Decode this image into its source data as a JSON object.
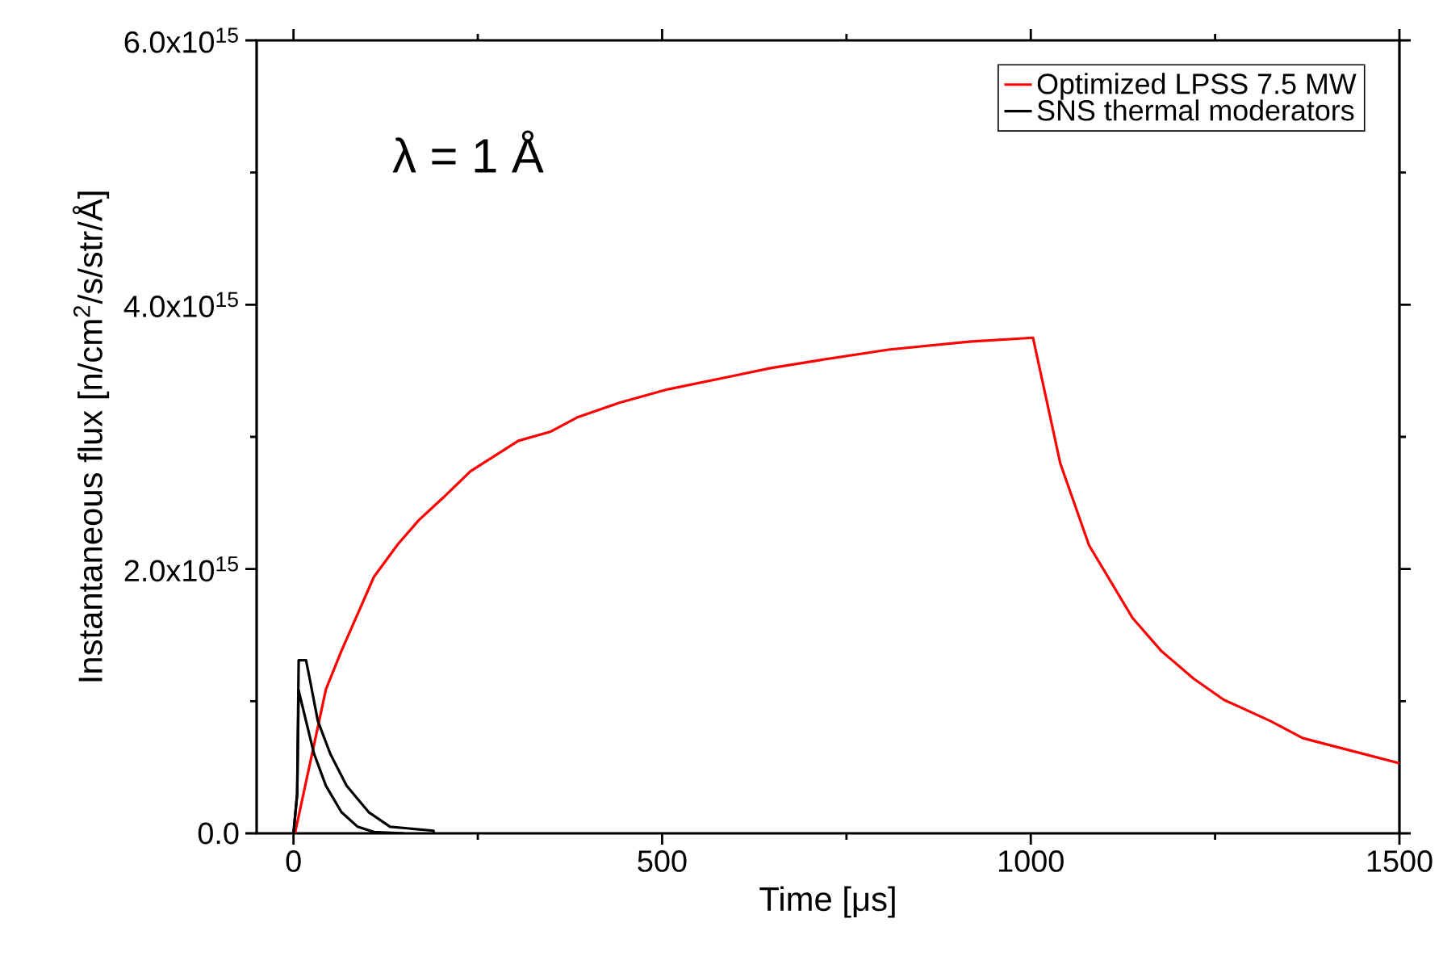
{
  "chart_data": {
    "type": "line",
    "xlabel": "Time [μs]",
    "ylabel": "Instantaneous flux [n/cm$^{2}$/s/str/Å]",
    "annotations": [
      "λ = 1 Å"
    ],
    "xlim": [
      -50,
      1500
    ],
    "ylim": [
      0,
      6000000000000000.0
    ],
    "xticks": [
      0,
      500,
      1000,
      1500
    ],
    "yticks": [
      {
        "value": 0,
        "label": "0.0"
      },
      {
        "value": 2000000000000000.0,
        "label": "2.0x10$^{15}$"
      },
      {
        "value": 4000000000000000.0,
        "label": "4.0x10$^{15}$"
      },
      {
        "value": 6000000000000000.0,
        "label": "6.0x10$^{15}$"
      }
    ],
    "legend": "top right",
    "series": [
      {
        "name": "Optimized LPSS 7.5 MW",
        "color": "#ff0000",
        "x": [
          2,
          44,
          65,
          87,
          109,
          142,
          170,
          203,
          240,
          305,
          349,
          386,
          443,
          508,
          595,
          647,
          713,
          807,
          916,
          1003,
          1040,
          1079,
          1138,
          1177,
          1221,
          1262,
          1325,
          1369,
          1500
        ],
        "values": [
          0,
          1090000000000000.0,
          1380000000000000.0,
          1660000000000000.0,
          1940000000000000.0,
          2190000000000000.0,
          2370000000000000.0,
          2540000000000000.0,
          2740000000000000.0,
          2970000000000000.0,
          3040000000000000.0,
          3150000000000000.0,
          3260000000000000.0,
          3360000000000000.0,
          3460000000000000.0,
          3520000000000000.0,
          3580000000000000.0,
          3660000000000000.0,
          3720000000000000.0,
          3750000000000000.0,
          2800000000000000.0,
          2180000000000000.0,
          1630000000000000.0,
          1380000000000000.0,
          1170000000000000.0,
          1010000000000000.0,
          850000000000000.0,
          720000000000000.0,
          530000000000000.0
        ]
      },
      {
        "name": "SNS thermal moderators",
        "color": "#000000",
        "x": [
          0,
          5,
          7,
          17,
          22,
          33,
          50,
          72,
          102,
          131,
          190,
          190
        ],
        "values": [
          0,
          300000000000000.0,
          1310000000000000.0,
          1310000000000000.0,
          1170000000000000.0,
          850000000000000.0,
          600000000000000.0,
          360000000000000.0,
          160000000000000.0,
          50000000000000.0,
          20000000000000.0,
          0
        ]
      },
      {
        "color": "#000000",
        "x": [
          0,
          5,
          7,
          17,
          28,
          44,
          65,
          87,
          109,
          150
        ],
        "values": [
          0,
          300000000000000.0,
          1080000000000000.0,
          850000000000000.0,
          600000000000000.0,
          360000000000000.0,
          160000000000000.0,
          50000000000000.0,
          10000000000000.0,
          0
        ]
      }
    ]
  }
}
